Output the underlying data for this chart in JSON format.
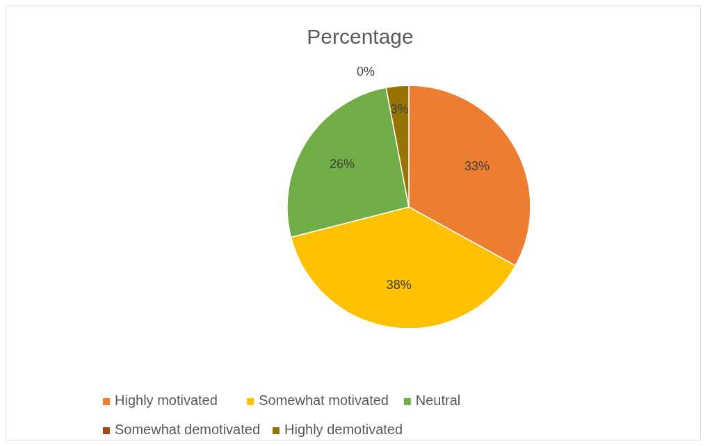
{
  "chart_data": {
    "type": "pie",
    "title": "Percentage",
    "categories": [
      "Highly motivated",
      "Somewhat motivated",
      "Neutral",
      "Somewhat demotivated",
      "Highly demotivated"
    ],
    "values": [
      33,
      38,
      26,
      0,
      3
    ],
    "colors": [
      "#ed7d31",
      "#ffc000",
      "#70ad47",
      "#9e480e",
      "#997300"
    ],
    "value_labels": [
      "33%",
      "38%",
      "26%",
      "0%",
      "3%"
    ],
    "legend": "bottom"
  }
}
